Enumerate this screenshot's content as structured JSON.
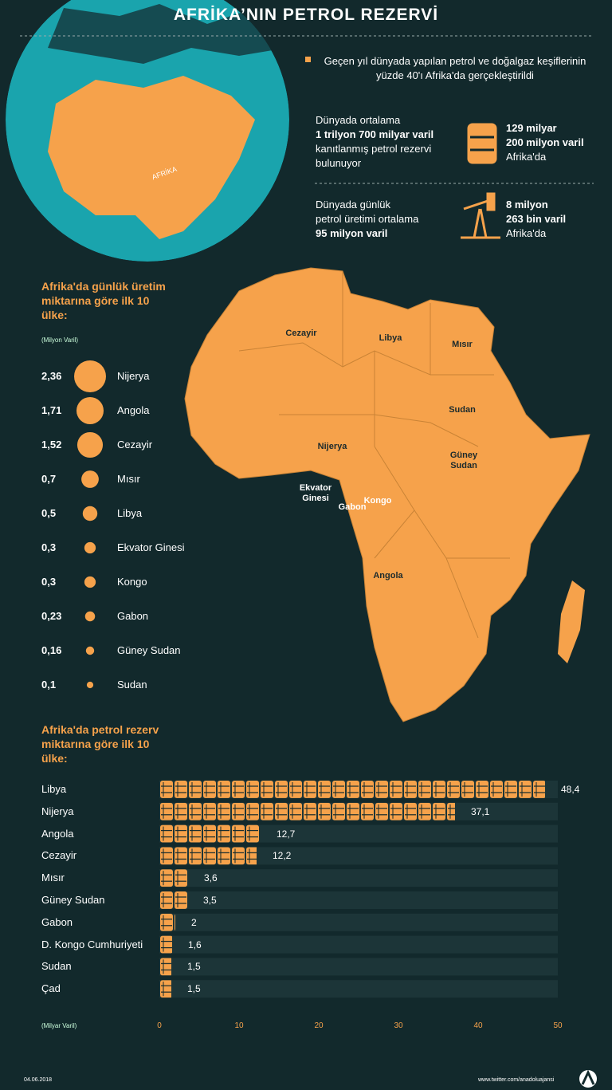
{
  "title": "AFRİKA’NIN PETROL REZERVİ",
  "intro": "Geçen yıl dünyada yapılan petrol ve doğalgaz keşiflerinin yüzde 40'ı Afrika'da gerçekleştirildi",
  "facts": [
    {
      "world": [
        "Dünyada ortalama",
        "1 trilyon 700 milyar varil",
        "kanıtlanmış petrol rezervi",
        "bulunuyor"
      ],
      "africa": [
        "129 milyar",
        "200 milyon varil",
        "Afrika'da"
      ]
    },
    {
      "world": [
        "Dünyada günlük",
        "petrol üretimi ortalama",
        "95 milyon varil"
      ],
      "africa": [
        "8 milyon",
        "263 bin varil",
        "Afrika'da"
      ]
    }
  ],
  "globe_label": "AFRİKA",
  "map_labels": [
    "Cezayir",
    "Libya",
    "Mısır",
    "Sudan",
    "Nijerya",
    "Güney Sudan",
    "Ekvator Ginesi",
    "Gabon",
    "Kongo",
    "Angola"
  ],
  "chart_data": [
    {
      "type": "bubble",
      "title": "Afrika'da günlük üretim miktarına göre ilk 10 ülke:",
      "unit": "(Milyon Varil)",
      "categories": [
        "Nijerya",
        "Angola",
        "Cezayir",
        "Mısır",
        "Libya",
        "Ekvator Ginesi",
        "Kongo",
        "Gabon",
        "Güney Sudan",
        "Sudan"
      ],
      "values": [
        2.36,
        1.71,
        1.52,
        0.7,
        0.5,
        0.3,
        0.3,
        0.23,
        0.16,
        0.1
      ],
      "value_labels": [
        "2,36",
        "1,71",
        "1,52",
        "0,7",
        "0,5",
        "0,3",
        "0,3",
        "0,23",
        "0,16",
        "0,1"
      ],
      "color": "#f6a24b"
    },
    {
      "type": "pictogram-bar",
      "title": "Afrika'da petrol rezerv miktarına göre ilk 10 ülke:",
      "unit": "(Milyar Varil)",
      "categories": [
        "Libya",
        "Nijerya",
        "Angola",
        "Cezayir",
        "Mısır",
        "Güney Sudan",
        "Gabon",
        "D. Kongo Cumhuriyeti",
        "Sudan",
        "Çad"
      ],
      "values": [
        48.4,
        37.1,
        12.7,
        12.2,
        3.6,
        3.5,
        2,
        1.6,
        1.5,
        1.5
      ],
      "value_labels": [
        "48,4",
        "37,1",
        "12,7",
        "12,2",
        "3,6",
        "3,5",
        "2",
        "1,6",
        "1,5",
        "1,5"
      ],
      "xlim": [
        0,
        50
      ],
      "xticks": [
        0,
        10,
        20,
        30,
        40,
        50
      ],
      "color": "#f6a24b"
    }
  ],
  "footer": {
    "date": "04.06.2018",
    "source": "www.twitter.com/anadoluajansi"
  }
}
